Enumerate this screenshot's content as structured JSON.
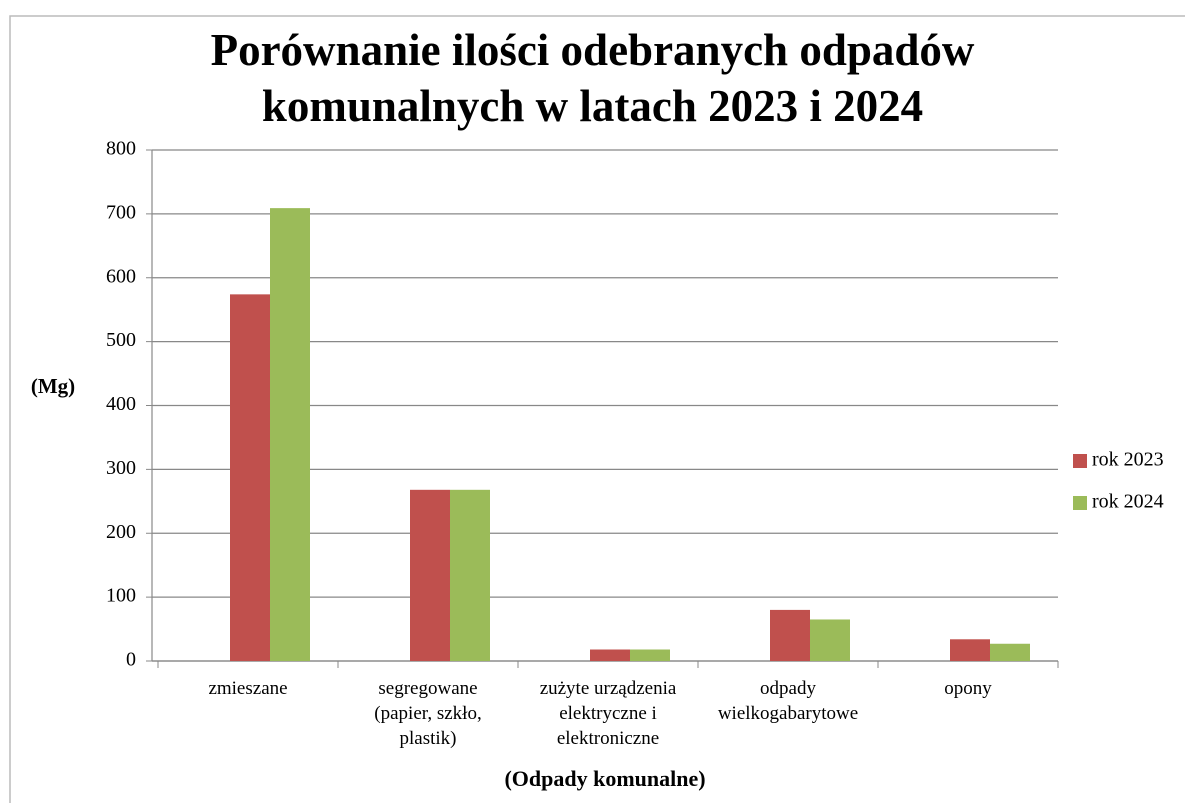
{
  "chart_data": {
    "type": "bar",
    "title": "Porównanie ilości odebranych odpadów\nkomunalnych w latach 2023 i 2024",
    "y_label": "(Mg)",
    "x_label": "(Odpady komunalne)",
    "categories": [
      "zmieszane",
      "segregowane\n(papier, szkło,\nplastik)",
      "zużyte urządzenia\nelektryczne i\nelektroniczne",
      "odpady\nwielkogabarytowe",
      "opony"
    ],
    "series": [
      {
        "name": "rok 2023",
        "color": "#c0504d",
        "values": [
          574,
          268,
          18,
          80,
          34
        ]
      },
      {
        "name": "rok 2024",
        "color": "#9bbb59",
        "values": [
          709,
          268,
          18,
          65,
          27
        ]
      }
    ],
    "ylim": [
      0,
      800
    ],
    "yticks": [
      0,
      100,
      200,
      300,
      400,
      500,
      600,
      700,
      800
    ],
    "grid": true,
    "legend": "right"
  }
}
